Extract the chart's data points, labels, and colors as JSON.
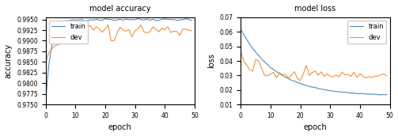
{
  "title_acc": "model accuracy",
  "title_loss": "model loss",
  "xlabel": "epoch",
  "ylabel_acc": "accuracy",
  "ylabel_loss": "loss",
  "epochs": 50,
  "acc_ylim": [
    0.975,
    0.9955
  ],
  "loss_ylim": [
    0.01,
    0.07
  ],
  "acc_yticks": [
    0.975,
    0.9775,
    0.98,
    0.9825,
    0.985,
    0.9875,
    0.99,
    0.9925,
    0.995
  ],
  "loss_yticks": [
    0.01,
    0.02,
    0.03,
    0.04,
    0.05,
    0.06,
    0.07
  ],
  "xticks": [
    0,
    10,
    20,
    30,
    40,
    50
  ],
  "train_color": "#4c8cbf",
  "dev_color": "#f0923b",
  "legend_labels": [
    "train",
    "dev"
  ],
  "figsize": [
    5.03,
    1.72
  ],
  "dpi": 100
}
